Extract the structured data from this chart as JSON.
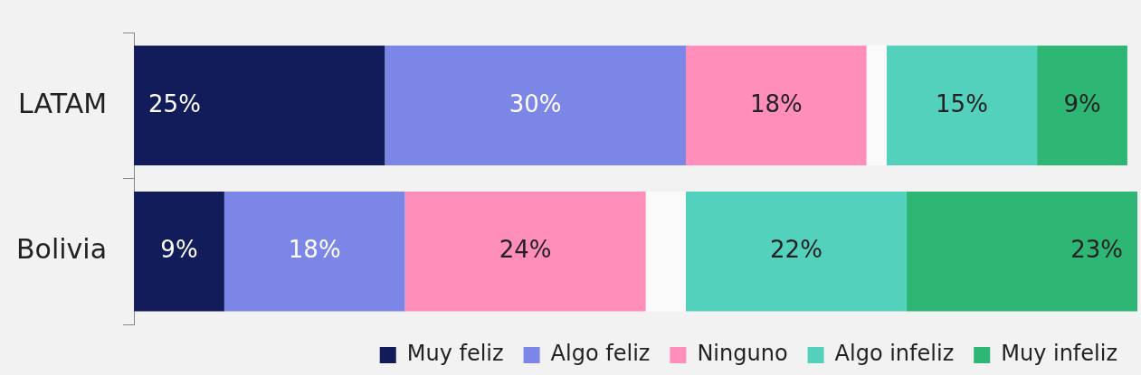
{
  "chart_data": {
    "type": "bar",
    "orientation": "horizontal",
    "stacked": true,
    "legend": "bottom",
    "categories": [
      "LATAM",
      "Bolivia"
    ],
    "series": [
      {
        "name": "Muy feliz",
        "color": "#131c5a",
        "values": [
          25,
          9
        ],
        "value_labels": [
          "25%",
          "9%"
        ]
      },
      {
        "name": "Algo feliz",
        "color": "#7b86e6",
        "values": [
          30,
          18
        ],
        "value_labels": [
          "30%",
          "18%"
        ]
      },
      {
        "name": "Ninguno",
        "color": "#ff8fba",
        "values": [
          18,
          24
        ],
        "value_labels": [
          "18%",
          "24%"
        ]
      },
      {
        "color": "#fafafa",
        "values": [
          2,
          4
        ],
        "value_labels": [
          null,
          null
        ]
      },
      {
        "name": "Algo infeliz",
        "color": "#54d1bd",
        "values": [
          15,
          22
        ],
        "value_labels": [
          "15%",
          "22%"
        ]
      },
      {
        "name": "Muy infeliz",
        "color": "#2eb774",
        "values": [
          9,
          23
        ],
        "value_labels": [
          "9%",
          "23%"
        ]
      }
    ]
  }
}
